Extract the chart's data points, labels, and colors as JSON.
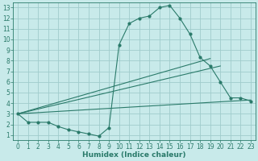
{
  "xlabel": "Humidex (Indice chaleur)",
  "bg_color": "#c8eaea",
  "grid_color": "#a0cccc",
  "line_color": "#2a7a6a",
  "xlim": [
    -0.5,
    23.5
  ],
  "ylim": [
    0.5,
    13.5
  ],
  "xticks": [
    0,
    1,
    2,
    3,
    4,
    5,
    6,
    7,
    8,
    9,
    10,
    11,
    12,
    13,
    14,
    15,
    16,
    17,
    18,
    19,
    20,
    21,
    22,
    23
  ],
  "yticks": [
    1,
    2,
    3,
    4,
    5,
    6,
    7,
    8,
    9,
    10,
    11,
    12,
    13
  ],
  "curve1_x": [
    0,
    1,
    2,
    3,
    4,
    5,
    6,
    7,
    8,
    9,
    10,
    11,
    12,
    13,
    14,
    15,
    16,
    17,
    18,
    19,
    20,
    21,
    22,
    23
  ],
  "curve1_y": [
    3.0,
    2.2,
    2.2,
    2.2,
    1.8,
    1.5,
    1.3,
    1.1,
    0.9,
    1.7,
    9.5,
    11.5,
    12.0,
    12.2,
    13.0,
    13.2,
    12.0,
    10.5,
    8.3,
    7.5,
    6.0,
    4.5,
    4.5,
    4.2
  ],
  "line1_x": [
    0,
    19
  ],
  "line1_y": [
    3.0,
    8.2
  ],
  "line2_x": [
    0,
    20
  ],
  "line2_y": [
    3.0,
    7.5
  ],
  "line3_x": [
    0,
    23
  ],
  "line3_y": [
    3.0,
    4.3
  ],
  "figsize": [
    3.2,
    2.0
  ],
  "dpi": 100,
  "tick_fontsize": 5.5,
  "xlabel_fontsize": 6.5
}
